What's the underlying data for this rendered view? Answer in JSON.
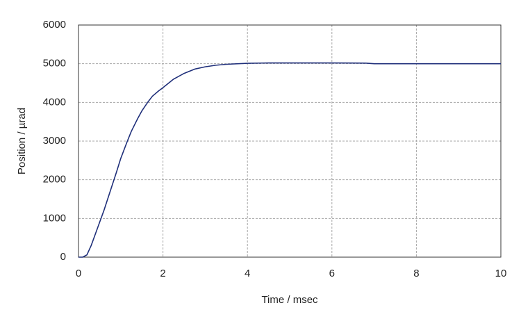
{
  "chart_data": {
    "type": "line",
    "x_label": "Time / msec",
    "y_label": "Position / µrad",
    "x": [
      0,
      0.1,
      0.2,
      0.3,
      0.4,
      0.5,
      0.6,
      0.75,
      0.9,
      1.0,
      1.15,
      1.25,
      1.4,
      1.5,
      1.65,
      1.75,
      1.9,
      2.0,
      2.25,
      2.5,
      2.75,
      3.0,
      3.25,
      3.5,
      4.0,
      4.5,
      5.0,
      6.0,
      6.8,
      7.0,
      8.0,
      9.0,
      10.0
    ],
    "values": [
      0,
      0,
      60,
      300,
      600,
      900,
      1200,
      1700,
      2200,
      2550,
      2980,
      3250,
      3580,
      3780,
      4020,
      4160,
      4300,
      4380,
      4600,
      4750,
      4860,
      4920,
      4960,
      4985,
      5010,
      5020,
      5020,
      5020,
      5015,
      5000,
      5000,
      5000,
      5000
    ],
    "color": "#1f2f7a",
    "xlim": [
      0,
      10
    ],
    "xticks": [
      0,
      2,
      4,
      6,
      8,
      10
    ],
    "ylim": [
      0,
      6000
    ],
    "yticks": [
      0,
      1000,
      2000,
      3000,
      4000,
      5000,
      6000
    ],
    "grid": true
  }
}
